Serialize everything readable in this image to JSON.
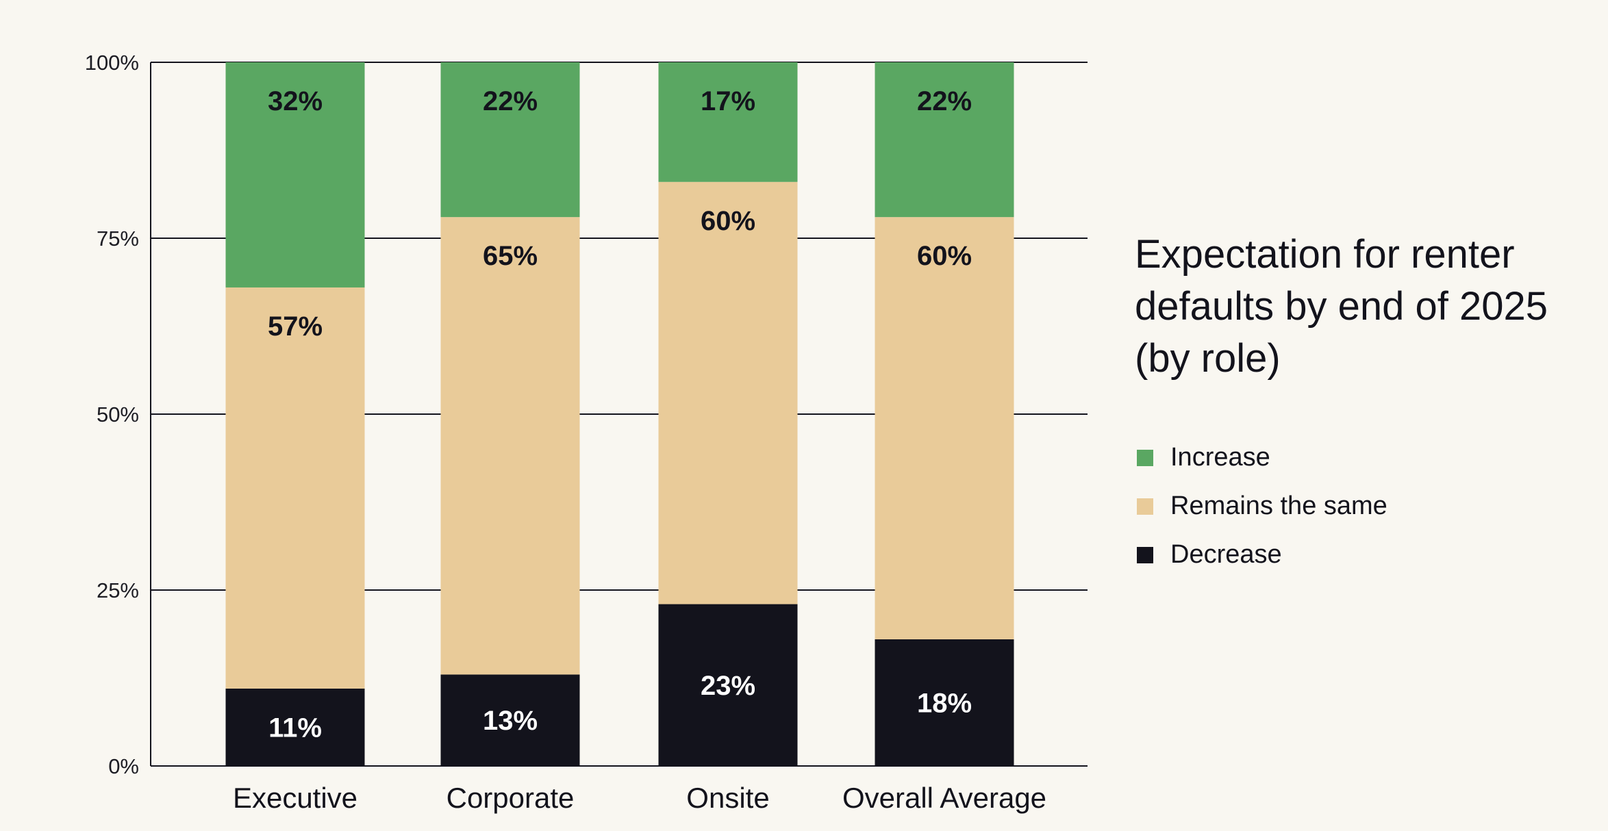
{
  "chart_data": {
    "type": "bar",
    "stacked": true,
    "title": "Expectation for renter defaults by end of 2025 (by role)",
    "categories": [
      "Executive",
      "Corporate",
      "Onsite",
      "Overall Average"
    ],
    "series": [
      {
        "name": "Decrease",
        "color": "#13131c",
        "label_color": "#ffffff",
        "values": [
          11,
          13,
          23,
          18
        ],
        "labels": [
          "11%",
          "13%",
          "23%",
          "18%"
        ]
      },
      {
        "name": "Remains the same",
        "color": "#e9cb99",
        "label_color": "#13131c",
        "values": [
          57,
          65,
          60,
          60
        ],
        "labels": [
          "57%",
          "65%",
          "60%",
          "60%"
        ]
      },
      {
        "name": "Increase",
        "color": "#5aa762",
        "label_color": "#13131c",
        "values": [
          32,
          22,
          17,
          22
        ],
        "labels": [
          "32%",
          "22%",
          "17%",
          "22%"
        ]
      }
    ],
    "ylim": [
      0,
      100
    ],
    "yticks": [
      0,
      25,
      50,
      75,
      100
    ],
    "ytick_labels": [
      "0%",
      "25%",
      "50%",
      "75%",
      "100%"
    ],
    "grid": true,
    "legend_position": "right",
    "legend_order": [
      "Increase",
      "Remains the same",
      "Decrease"
    ]
  },
  "colors": {
    "background": "#f9f7f1",
    "increase": "#5aa762",
    "same": "#e9cb99",
    "decrease": "#13131c",
    "gridline": "#13131c"
  }
}
